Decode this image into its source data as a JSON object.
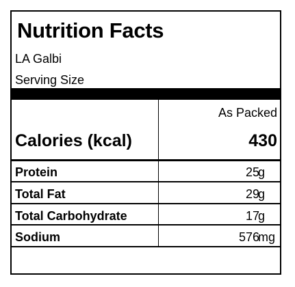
{
  "label": {
    "title": "Nutrition Facts",
    "product_name": "LA Galbi",
    "serving_size_label": "Serving Size",
    "column_header": "As Packed",
    "calories": {
      "label": "Calories (kcal)",
      "value": "430"
    },
    "nutrients": [
      {
        "name": "Protein",
        "amount": "25",
        "unit": "g"
      },
      {
        "name": "Total Fat",
        "amount": "29",
        "unit": "g"
      },
      {
        "name": "Total Carbohydrate",
        "amount": "17",
        "unit": "g"
      },
      {
        "name": "Sodium",
        "amount": "576",
        "unit": "mg"
      }
    ]
  }
}
